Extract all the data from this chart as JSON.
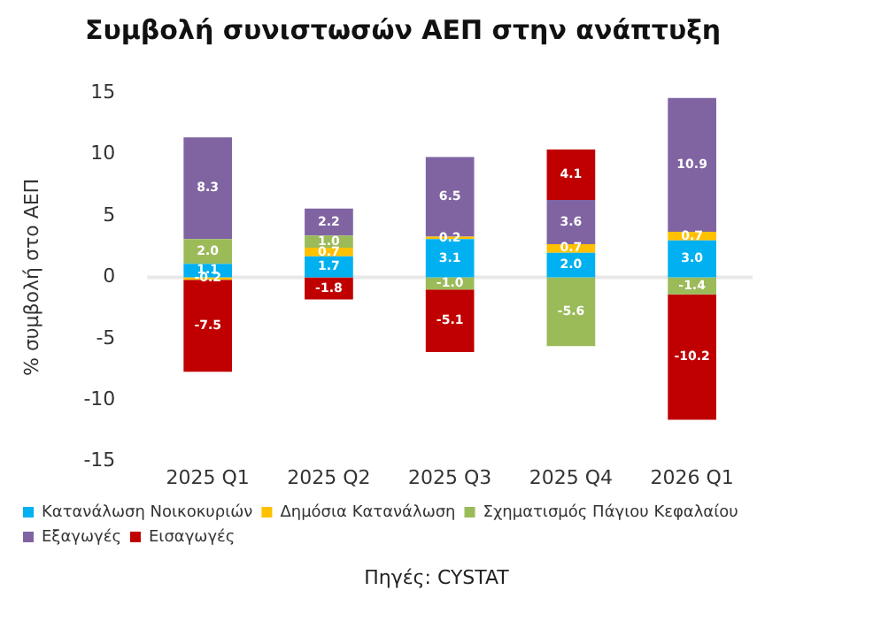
{
  "chart_data": {
    "type": "bar",
    "title": "Συμβολή συνιστωσών ΑΕΠ στην ανάπτυξη",
    "ylabel": "% συμβολή στο ΑΕΠ",
    "categories": [
      "2025 Q1",
      "2025 Q2",
      "2025 Q3",
      "2025 Q4",
      "2026 Q1"
    ],
    "series": [
      {
        "name": "Κατανάλωση Νοικοκυριών",
        "color": "#00b0f0",
        "values": [
          1.1,
          1.7,
          3.1,
          2.0,
          3.0
        ],
        "value_labels": [
          "1.1",
          "1.7",
          "3.1",
          "2.0",
          "3.0"
        ]
      },
      {
        "name": "Δημόσια Κατανάλωση",
        "color": "#ffc000",
        "values": [
          -0.2,
          0.7,
          0.2,
          0.7,
          0.7
        ],
        "value_labels": [
          "-0.2",
          "0.7",
          "0.2",
          "0.7",
          "0.7"
        ]
      },
      {
        "name": "Σχηματισμός Πάγιου Κεφαλαίου",
        "color": "#9bbb59",
        "values": [
          2.0,
          1.0,
          -1.0,
          -5.6,
          -1.4
        ],
        "value_labels": [
          "2.0",
          "1.0",
          "-1.0",
          "-5.6",
          "-1.4"
        ]
      },
      {
        "name": "Εξαγωγές",
        "color": "#8064a2",
        "values": [
          8.3,
          2.2,
          6.5,
          3.6,
          10.9
        ],
        "value_labels": [
          "8.3",
          "2.2",
          "6.5",
          "3.6",
          "10.9"
        ]
      },
      {
        "name": "Εισαγωγές",
        "color": "#c00000",
        "values": [
          -7.5,
          -1.8,
          -5.1,
          4.1,
          -10.2
        ],
        "value_labels": [
          "-7.5",
          "-1.8",
          "-5.1",
          "4.1",
          "-10.2"
        ]
      }
    ],
    "stacked": true,
    "ylim": [
      -15,
      15
    ],
    "yticks": [
      -15,
      -10,
      -5,
      0,
      5,
      10,
      15
    ],
    "grid": false,
    "legend": "bottom",
    "ref_lines": [
      {
        "axis": "y",
        "value": 0,
        "color": "#e8e8e8"
      }
    ],
    "annotations": [
      "Πηγές: CYSTAT"
    ]
  }
}
